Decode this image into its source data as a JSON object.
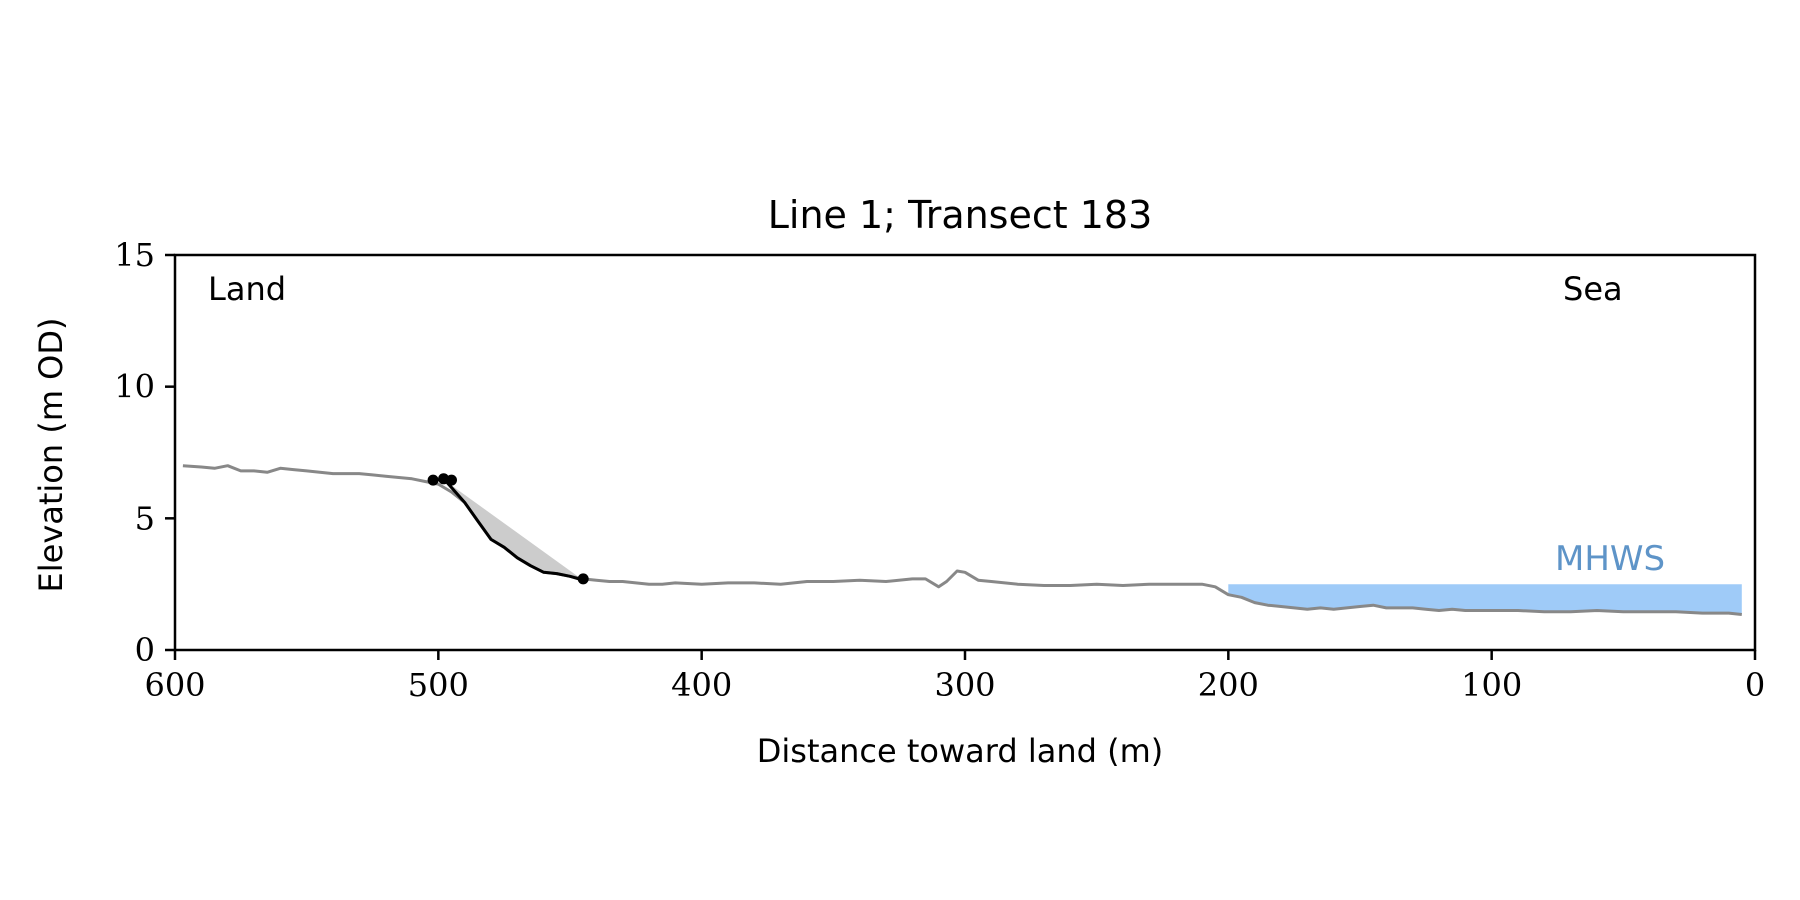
{
  "chart_data": {
    "type": "line",
    "title": "Line 1; Transect 183",
    "xlabel": "Distance toward land (m)",
    "ylabel": "Elevation (m OD)",
    "xlim": [
      600,
      0
    ],
    "ylim": [
      0,
      15
    ],
    "x_reversed": true,
    "xticks": [
      600,
      500,
      400,
      300,
      200,
      100,
      0
    ],
    "yticks": [
      0,
      5,
      10,
      15
    ],
    "grid": false,
    "annotations": {
      "land": "Land",
      "sea": "Sea",
      "mhws": "MHWS"
    },
    "mhws": {
      "level": 2.5,
      "x_start": 200,
      "x_end": 5
    },
    "series": [
      {
        "role": "profile",
        "x": [
          597,
          590,
          585,
          580,
          575,
          570,
          565,
          560,
          555,
          550,
          545,
          540,
          535,
          530,
          525,
          520,
          515,
          510,
          505,
          500,
          495,
          490,
          485,
          480,
          475,
          470,
          465,
          460,
          455,
          450,
          445,
          440,
          435,
          430,
          425,
          420,
          415,
          410,
          400,
          390,
          380,
          370,
          360,
          350,
          340,
          330,
          320,
          315,
          310,
          307,
          303,
          300,
          295,
          290,
          280,
          270,
          260,
          250,
          240,
          230,
          220,
          210,
          205,
          200,
          195,
          190,
          185,
          180,
          175,
          170,
          165,
          160,
          155,
          150,
          145,
          140,
          135,
          130,
          125,
          120,
          115,
          110,
          100,
          90,
          80,
          70,
          60,
          50,
          40,
          30,
          20,
          10,
          5
        ],
        "y": [
          7.0,
          6.95,
          6.9,
          7.0,
          6.8,
          6.8,
          6.75,
          6.9,
          6.85,
          6.8,
          6.75,
          6.7,
          6.7,
          6.7,
          6.65,
          6.6,
          6.55,
          6.5,
          6.4,
          6.3,
          6.0,
          5.6,
          4.9,
          4.2,
          3.9,
          3.5,
          3.2,
          2.95,
          2.9,
          2.8,
          2.7,
          2.65,
          2.6,
          2.6,
          2.55,
          2.5,
          2.5,
          2.55,
          2.5,
          2.55,
          2.55,
          2.5,
          2.6,
          2.6,
          2.65,
          2.6,
          2.7,
          2.7,
          2.4,
          2.6,
          3.0,
          2.95,
          2.65,
          2.6,
          2.5,
          2.45,
          2.45,
          2.5,
          2.45,
          2.5,
          2.5,
          2.5,
          2.4,
          2.1,
          2.0,
          1.8,
          1.7,
          1.65,
          1.6,
          1.55,
          1.6,
          1.55,
          1.6,
          1.65,
          1.7,
          1.6,
          1.6,
          1.6,
          1.55,
          1.5,
          1.55,
          1.5,
          1.5,
          1.5,
          1.45,
          1.45,
          1.5,
          1.45,
          1.45,
          1.45,
          1.4,
          1.4,
          1.35
        ]
      },
      {
        "role": "cliff-face",
        "x": [
          497,
          490,
          485,
          480,
          475,
          470,
          465,
          460,
          455,
          450,
          445
        ],
        "y": [
          6.4,
          5.6,
          4.9,
          4.2,
          3.9,
          3.5,
          3.2,
          2.95,
          2.9,
          2.8,
          2.65
        ]
      }
    ],
    "shaded_region": {
      "x": [
        503,
        497,
        445,
        450,
        455,
        460,
        465,
        470,
        475,
        480,
        485,
        490,
        497
      ],
      "y": [
        6.45,
        6.4,
        2.65,
        2.8,
        2.9,
        2.95,
        3.2,
        3.5,
        3.9,
        4.2,
        4.9,
        5.6,
        6.4
      ]
    },
    "markers": {
      "x": [
        502,
        498,
        495,
        445
      ],
      "y": [
        6.45,
        6.5,
        6.45,
        2.7
      ]
    },
    "colors": {
      "profile": "#888888",
      "cliff_face": "#000000",
      "shading": "#cccccc",
      "mhws_fill": "#9fcbf8",
      "mhws_text": "#5e94c8",
      "axes": "#000000"
    }
  }
}
